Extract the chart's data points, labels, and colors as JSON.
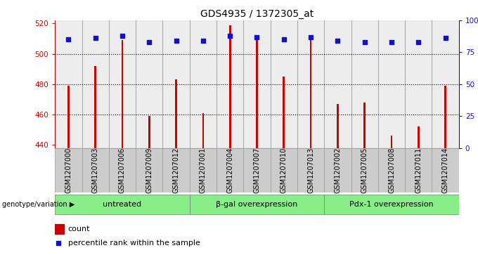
{
  "title": "GDS4935 / 1372305_at",
  "categories": [
    "GSM1207000",
    "GSM1207003",
    "GSM1207006",
    "GSM1207009",
    "GSM1207012",
    "GSM1207001",
    "GSM1207004",
    "GSM1207007",
    "GSM1207010",
    "GSM1207013",
    "GSM1207002",
    "GSM1207005",
    "GSM1207008",
    "GSM1207011",
    "GSM1207014"
  ],
  "count_values": [
    479,
    492,
    509,
    459,
    483,
    461,
    519,
    510,
    485,
    509,
    467,
    468,
    446,
    452,
    479
  ],
  "percentile_values": [
    85,
    86,
    88,
    83,
    84,
    84,
    88,
    87,
    85,
    87,
    84,
    83,
    83,
    83,
    86
  ],
  "ylim_left": [
    438,
    522
  ],
  "ylim_right": [
    0,
    100
  ],
  "y_left_ticks": [
    440,
    460,
    480,
    500,
    520
  ],
  "y_right_ticks": [
    0,
    25,
    50,
    75,
    100
  ],
  "y_right_labels": [
    "0",
    "25",
    "50",
    "75",
    "100%"
  ],
  "gridlines": [
    460,
    480,
    500
  ],
  "bar_color": "#cc0000",
  "dot_color": "#1111cc",
  "col_bg_color": "#cccccc",
  "col_bg_alpha": 0.35,
  "col_line_color": "#999999",
  "groups": [
    {
      "label": "untreated",
      "start": 0,
      "end": 5
    },
    {
      "label": "β-gal overexpression",
      "start": 5,
      "end": 10
    },
    {
      "label": "Pdx-1 overexpression",
      "start": 10,
      "end": 15
    }
  ],
  "group_color": "#88ee88",
  "group_edge_color": "#777777",
  "genotype_label": "genotype/variation",
  "legend_count": "count",
  "legend_percentile": "percentile rank within the sample",
  "axis_left_color": "#cc0000",
  "axis_right_color": "#1111cc",
  "title_fontsize": 10,
  "tick_fontsize": 7.5,
  "label_fontsize": 7,
  "bar_width": 0.07
}
